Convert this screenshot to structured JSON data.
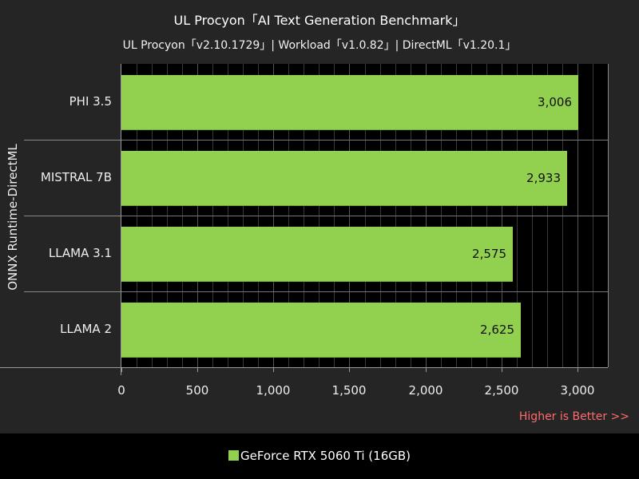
{
  "header": {
    "title": "UL Procyon「AI Text Generation Benchmark」",
    "subtitle": "UL Procyon「v2.10.1729」| Workload「v1.0.82」| DirectML「v1.20.1」"
  },
  "axis": {
    "group_label": "ONNX Runtime-DirectML",
    "ticks": [
      "0",
      "500",
      "1,000",
      "1,500",
      "2,000",
      "2,500",
      "3,000"
    ],
    "higher_is_better": "Higher is Better >>"
  },
  "legend": {
    "series_label": "GeForce RTX 5060 Ti (16GB)",
    "color": "#92d050"
  },
  "bars": [
    {
      "label": "PHI 3.5",
      "value": 3006,
      "display": "3,006"
    },
    {
      "label": "MISTRAL 7B",
      "value": 2933,
      "display": "2,933"
    },
    {
      "label": "LLAMA 3.1",
      "value": 2575,
      "display": "2,575"
    },
    {
      "label": "LLAMA 2",
      "value": 2625,
      "display": "2,625"
    }
  ],
  "chart_data": {
    "type": "bar",
    "orientation": "horizontal",
    "title": "UL Procyon「AI Text Generation Benchmark」",
    "subtitle": "UL Procyon「v2.10.1729」| Workload「v1.0.82」| DirectML「v1.20.1」",
    "ylabel": "ONNX Runtime-DirectML",
    "xlabel": "",
    "categories": [
      "PHI 3.5",
      "MISTRAL 7B",
      "LLAMA 3.1",
      "LLAMA 2"
    ],
    "series": [
      {
        "name": "GeForce RTX 5060 Ti (16GB)",
        "color": "#92d050",
        "values": [
          3006,
          2933,
          2575,
          2625
        ]
      }
    ],
    "xlim": [
      0,
      3200
    ],
    "x_ticks": [
      0,
      500,
      1000,
      1500,
      2000,
      2500,
      3000
    ],
    "grid": true,
    "legend_position": "bottom",
    "annotation": "Higher is Better >>"
  }
}
